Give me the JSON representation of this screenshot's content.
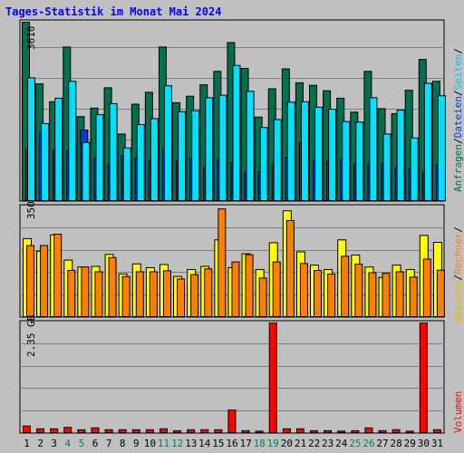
{
  "title": "Tages-Statistik im Monat Mai 2024",
  "colors": {
    "background": "#c0c0c0",
    "title": "#0000ff",
    "anfragen": "#006f4f",
    "dateien": "#0040d8",
    "seiten": "#00e0ff",
    "besuche": "#ffff00",
    "rechner": "#ff8000",
    "volumen": "#ff0000",
    "weekend_label": "#00805f"
  },
  "panels": {
    "top": {
      "ymax_label": "3610",
      "legend": [
        "Anfragen",
        "Dateien",
        "Seiten"
      ]
    },
    "middle": {
      "ymax_label": "350",
      "legend": [
        "Besuche",
        "Rechner"
      ]
    },
    "bottom": {
      "ymax_label": "2.35 GB",
      "legend": [
        "Volumen"
      ]
    }
  },
  "chart_data": [
    {
      "type": "bar",
      "title": "",
      "ylim": [
        0,
        3610
      ],
      "categories": [
        "1",
        "2",
        "3",
        "4",
        "5",
        "6",
        "7",
        "8",
        "9",
        "10",
        "11",
        "12",
        "13",
        "14",
        "15",
        "16",
        "17",
        "18",
        "19",
        "20",
        "21",
        "22",
        "23",
        "24",
        "25",
        "26",
        "27",
        "28",
        "29",
        "30",
        "31"
      ],
      "weekend_days": [
        "4",
        "5",
        "11",
        "12",
        "18",
        "19",
        "25",
        "26"
      ],
      "series": [
        {
          "name": "Anfragen",
          "values": [
            3610,
            2370,
            2010,
            3110,
            1710,
            1880,
            2290,
            1360,
            1960,
            2200,
            3110,
            1990,
            2120,
            2350,
            2620,
            3200,
            2680,
            1700,
            2270,
            2670,
            2390,
            2340,
            2230,
            2080,
            1800,
            2620,
            1870,
            1770,
            2240,
            2860,
            2420
          ]
        },
        {
          "name": "Dateien",
          "values": [
            1050,
            1380,
            1030,
            1020,
            1440,
            880,
            740,
            920,
            880,
            830,
            1050,
            820,
            880,
            680,
            840,
            780,
            600,
            600,
            740,
            890,
            1180,
            840,
            810,
            850,
            760,
            750,
            760,
            680,
            650,
            590,
            740
          ]
        },
        {
          "name": "Seiten",
          "values": [
            2490,
            1570,
            2080,
            2420,
            1190,
            1750,
            1970,
            1080,
            1550,
            1670,
            2330,
            1810,
            1830,
            2090,
            2140,
            2740,
            2220,
            1490,
            1650,
            2000,
            2010,
            1900,
            1860,
            1610,
            1600,
            2090,
            1360,
            1840,
            1280,
            2380,
            2130
          ]
        }
      ]
    },
    {
      "type": "bar",
      "title": "",
      "ylim": [
        0,
        350
      ],
      "categories": [
        "1",
        "2",
        "3",
        "4",
        "5",
        "6",
        "7",
        "8",
        "9",
        "10",
        "11",
        "12",
        "13",
        "14",
        "15",
        "16",
        "17",
        "18",
        "19",
        "20",
        "21",
        "22",
        "23",
        "24",
        "25",
        "26",
        "27",
        "28",
        "29",
        "30",
        "31"
      ],
      "series": [
        {
          "name": "Besuche",
          "values": [
            250,
            210,
            262,
            182,
            160,
            162,
            200,
            138,
            170,
            158,
            168,
            130,
            152,
            162,
            246,
            158,
            202,
            152,
            237,
            338,
            208,
            166,
            152,
            246,
            198,
            160,
            127,
            166,
            152,
            260,
            238
          ]
        },
        {
          "name": "Rechner",
          "values": [
            228,
            228,
            264,
            149,
            160,
            145,
            190,
            130,
            145,
            145,
            148,
            122,
            136,
            154,
            344,
            176,
            199,
            125,
            176,
            307,
            171,
            149,
            138,
            194,
            169,
            142,
            140,
            145,
            128,
            185,
            150
          ]
        }
      ]
    },
    {
      "type": "bar",
      "title": "",
      "ylim": [
        0,
        2.35
      ],
      "unit": "GB",
      "categories": [
        "1",
        "2",
        "3",
        "4",
        "5",
        "6",
        "7",
        "8",
        "9",
        "10",
        "11",
        "12",
        "13",
        "14",
        "15",
        "16",
        "17",
        "18",
        "19",
        "20",
        "21",
        "22",
        "23",
        "24",
        "25",
        "26",
        "27",
        "28",
        "29",
        "30",
        "31"
      ],
      "series": [
        {
          "name": "Volumen",
          "values": [
            0.16,
            0.1,
            0.1,
            0.13,
            0.08,
            0.12,
            0.08,
            0.08,
            0.08,
            0.08,
            0.1,
            0.06,
            0.08,
            0.08,
            0.08,
            0.5,
            0.06,
            0.05,
            2.35,
            0.1,
            0.1,
            0.06,
            0.06,
            0.05,
            0.06,
            0.12,
            0.06,
            0.08,
            0.05,
            2.35,
            0.08
          ]
        }
      ]
    }
  ]
}
